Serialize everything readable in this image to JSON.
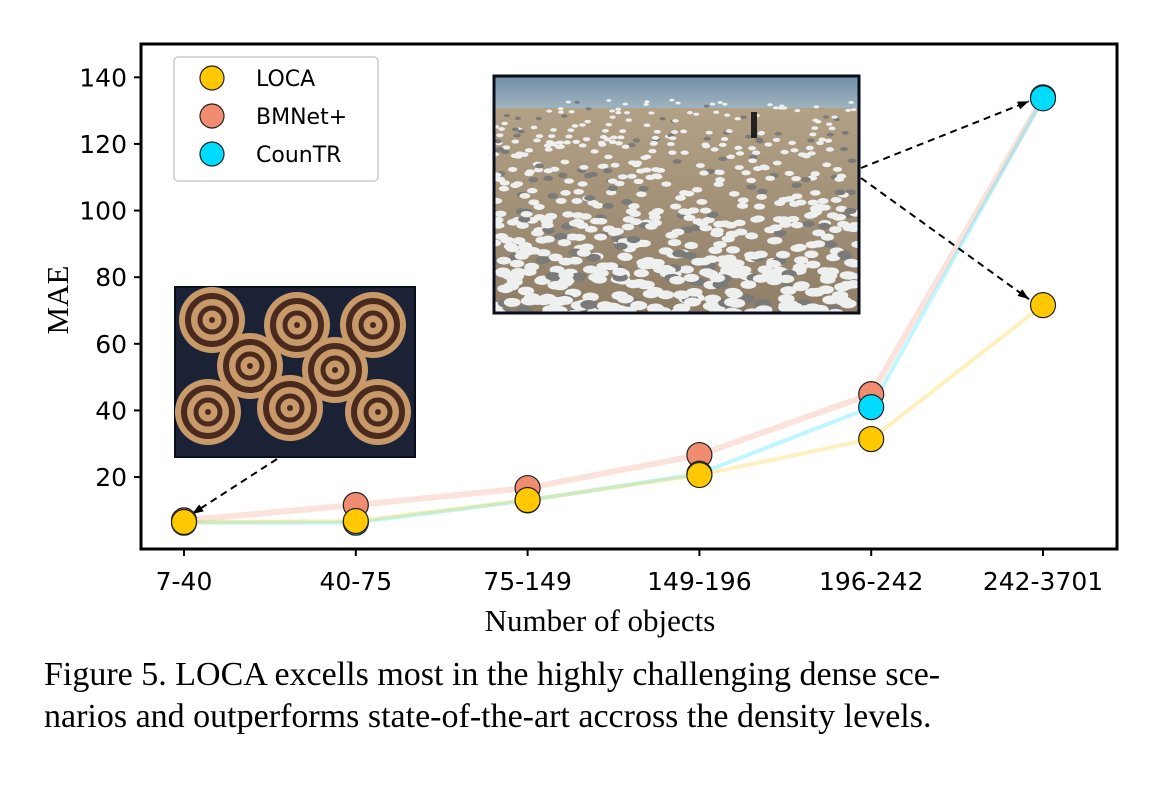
{
  "chart_data": {
    "type": "line",
    "categories": [
      "7-40",
      "40-75",
      "75-149",
      "149-196",
      "196-242",
      "242-3701"
    ],
    "series": [
      {
        "name": "LOCA",
        "color": "#FFC800",
        "values": [
          6.5,
          6.8,
          13.1,
          20.6,
          31.4,
          71.6
        ]
      },
      {
        "name": "BMNet+",
        "color": "#F08C70",
        "values": [
          7.0,
          11.6,
          16.7,
          26.6,
          44.9,
          134.0
        ]
      },
      {
        "name": "CounTR",
        "color": "#00DCFF",
        "values": [
          6.3,
          6.3,
          13.0,
          21.0,
          41.0,
          133.7
        ]
      }
    ],
    "xlabel": "Number of objects",
    "ylabel": "MAE",
    "ylim": [
      -1.6,
      150
    ],
    "yticks": [
      20,
      40,
      60,
      80,
      100,
      120,
      140
    ],
    "grid": false,
    "legend": "top-left",
    "annotations": [
      {
        "type": "inset-image",
        "depicts": "cinnamon rolls",
        "points_to": "7-40"
      },
      {
        "type": "inset-image",
        "depicts": "flock of seagulls on beach",
        "points_to": "242-3701"
      }
    ]
  },
  "caption": {
    "line1": "Figure 5. LOCA excells most in the highly challenging dense sce-",
    "line2": "narios and outperforms state-of-the-art accross the density levels."
  }
}
